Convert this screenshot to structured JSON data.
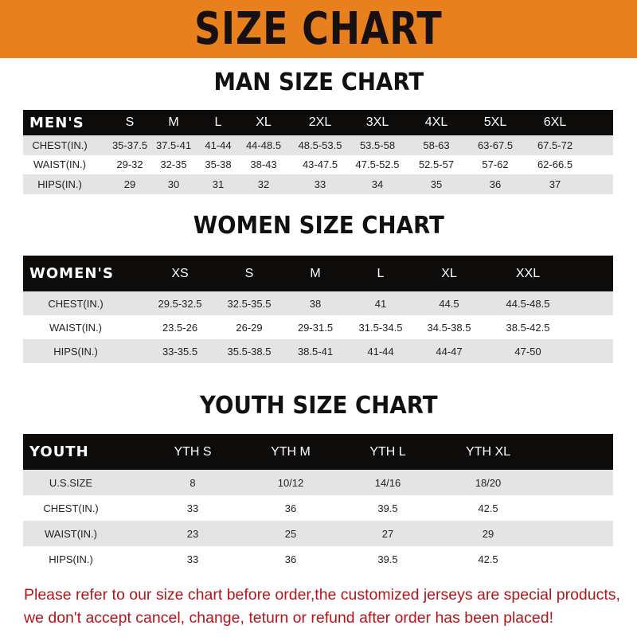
{
  "banner": {
    "title": "SIZE CHART",
    "color": "#e8801e"
  },
  "sections": [
    {
      "title": "MAN SIZE CHART",
      "header": [
        "MEN'S",
        "S",
        "M",
        "L",
        "XL",
        "2XL",
        "3XL",
        "4XL",
        "5XL",
        "6XL"
      ],
      "rows": [
        [
          "CHEST(IN.)",
          "35-37.5",
          "37.5-41",
          "41-44",
          "44-48.5",
          "48.5-53.5",
          "53.5-58",
          "58-63",
          "63-67.5",
          "67.5-72"
        ],
        [
          "WAIST(IN.)",
          "29-32",
          "32-35",
          "35-38",
          "38-43",
          "43-47.5",
          "47.5-52.5",
          "52.5-57",
          "57-62",
          "62-66.5"
        ],
        [
          "HIPS(IN.)",
          "29",
          "30",
          "31",
          "32",
          "33",
          "34",
          "35",
          "36",
          "37"
        ]
      ]
    },
    {
      "title": "WOMEN SIZE CHART",
      "header": [
        "WOMEN'S",
        "XS",
        "S",
        "M",
        "L",
        "XL",
        "XXL"
      ],
      "rows": [
        [
          "CHEST(IN.)",
          "29.5-32.5",
          "32.5-35.5",
          "38",
          "41",
          "44.5",
          "44.5-48.5"
        ],
        [
          "WAIST(IN.)",
          "23.5-26",
          "26-29",
          "29-31.5",
          "31.5-34.5",
          "34.5-38.5",
          "38.5-42.5"
        ],
        [
          "HIPS(IN.)",
          "33-35.5",
          "35.5-38.5",
          "38.5-41",
          "41-44",
          "44-47",
          "47-50"
        ]
      ]
    },
    {
      "title": "YOUTH SIZE CHART",
      "header": [
        "YOUTH",
        "YTH S",
        "YTH M",
        "YTH L",
        "YTH XL"
      ],
      "rows": [
        [
          "U.S.SIZE",
          "8",
          "10/12",
          "14/16",
          "18/20"
        ],
        [
          "CHEST(IN.)",
          "33",
          "36",
          "39.5",
          "42.5"
        ],
        [
          "WAIST(IN.)",
          "23",
          "25",
          "27",
          "29"
        ],
        [
          "HIPS(IN.)",
          "33",
          "36",
          "39.5",
          "42.5"
        ]
      ]
    }
  ],
  "footer": {
    "line1": "Please refer to our size chart before order,the customized jerseys are special products,",
    "line2": "we don't accept cancel, change, teturn or refund after order has been placed!",
    "color": "#b3151b"
  }
}
